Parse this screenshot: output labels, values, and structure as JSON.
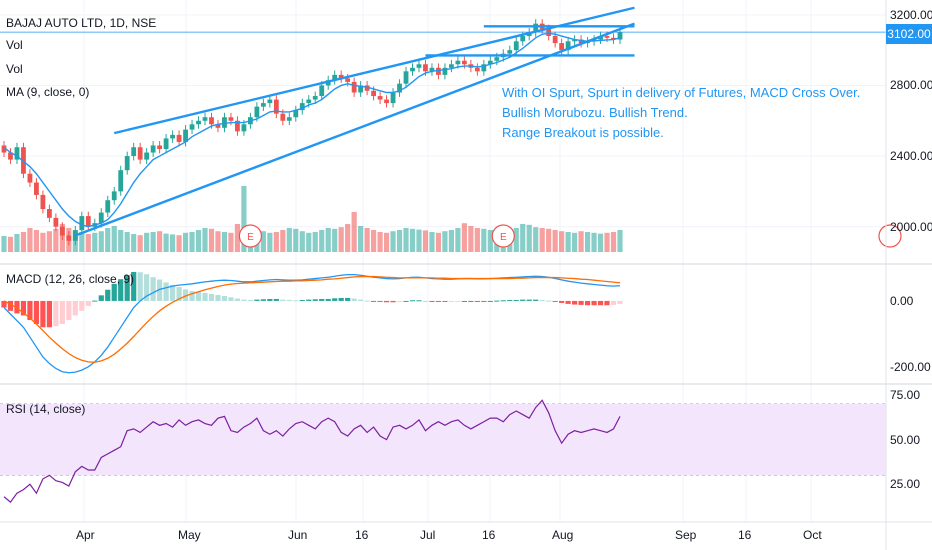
{
  "header": {
    "symbol": "BAJAJ AUTO LTD, 1D, NSE"
  },
  "legends": {
    "vol1": "Vol",
    "vol2": "Vol",
    "ma": "MA (9, close, 0)",
    "macd": "MACD (12, 26, close, 9)",
    "rsi": "RSI (14, close)"
  },
  "annotation": {
    "line1": "With OI Spurt, Spurt in delivery of Futures, MACD Cross Over.",
    "line2": "Bullish Morubozu. Bullish Trend.",
    "line3": "Range Breakout is possible."
  },
  "earnings_marker": "E",
  "last_price_label": "3102.00",
  "price_axis": [
    "3200.00",
    "2800.00",
    "2400.00",
    "2000.00"
  ],
  "macd_axis": [
    "0.00",
    "-200.00"
  ],
  "rsi_axis": [
    "75.00",
    "50.00",
    "25.00"
  ],
  "time_axis": [
    "Apr",
    "May",
    "Jun",
    "16",
    "Jul",
    "16",
    "Aug",
    "Sep",
    "16",
    "Oct"
  ],
  "colors": {
    "up": "#26a69a",
    "down": "#ef5350",
    "trend": "#2196f3",
    "macd": "#2196f3",
    "signal": "#ff6d00",
    "rsi": "#7b1fa2",
    "rsi_band": "#f3e5fb"
  },
  "chart_data": {
    "type": "candlestick",
    "price_range": [
      1800,
      3250
    ],
    "last_price": 3102,
    "closes": [
      2420,
      2380,
      2450,
      2300,
      2250,
      2180,
      2100,
      2050,
      2000,
      1950,
      1920,
      1980,
      2060,
      2000,
      2020,
      2080,
      2150,
      2200,
      2320,
      2400,
      2450,
      2380,
      2420,
      2460,
      2440,
      2500,
      2520,
      2480,
      2550,
      2580,
      2600,
      2620,
      2580,
      2560,
      2620,
      2600,
      2540,
      2580,
      2620,
      2680,
      2700,
      2720,
      2640,
      2600,
      2620,
      2660,
      2700,
      2720,
      2740,
      2800,
      2830,
      2860,
      2840,
      2820,
      2760,
      2800,
      2770,
      2740,
      2720,
      2700,
      2760,
      2810,
      2880,
      2900,
      2920,
      2880,
      2900,
      2860,
      2900,
      2920,
      2940,
      2920,
      2900,
      2880,
      2920,
      2940,
      2960,
      2980,
      3000,
      3050,
      3080,
      3100,
      3150,
      3120,
      3080,
      3040,
      3000,
      3050,
      3060,
      3040,
      3050,
      3060,
      3080,
      3070,
      3060,
      3102
    ],
    "ma9": [
      2450,
      2420,
      2400,
      2370,
      2340,
      2300,
      2250,
      2200,
      2150,
      2100,
      2060,
      2030,
      2010,
      2000,
      2010,
      2020,
      2040,
      2080,
      2130,
      2190,
      2250,
      2300,
      2340,
      2380,
      2400,
      2420,
      2440,
      2460,
      2480,
      2510,
      2530,
      2550,
      2570,
      2580,
      2585,
      2590,
      2590,
      2590,
      2600,
      2610,
      2630,
      2650,
      2655,
      2650,
      2650,
      2660,
      2670,
      2690,
      2700,
      2720,
      2750,
      2780,
      2800,
      2810,
      2800,
      2795,
      2790,
      2780,
      2770,
      2760,
      2760,
      2770,
      2790,
      2820,
      2850,
      2870,
      2880,
      2885,
      2890,
      2895,
      2905,
      2910,
      2910,
      2905,
      2910,
      2920,
      2930,
      2945,
      2960,
      2985,
      3010,
      3040,
      3070,
      3090,
      3095,
      3090,
      3080,
      3070,
      3060,
      3055,
      3050,
      3052,
      3055,
      3058,
      3060,
      3070
    ],
    "volume": [
      40,
      38,
      45,
      50,
      60,
      55,
      48,
      52,
      58,
      70,
      60,
      55,
      50,
      45,
      48,
      52,
      60,
      65,
      55,
      50,
      45,
      42,
      48,
      50,
      52,
      46,
      44,
      42,
      48,
      50,
      55,
      60,
      58,
      52,
      50,
      48,
      70,
      165,
      60,
      55,
      52,
      48,
      50,
      55,
      60,
      58,
      52,
      48,
      50,
      55,
      60,
      58,
      62,
      70,
      100,
      65,
      60,
      55,
      50,
      48,
      52,
      55,
      60,
      58,
      56,
      54,
      50,
      48,
      52,
      55,
      60,
      72,
      65,
      60,
      58,
      55,
      52,
      50,
      55,
      60,
      70,
      68,
      62,
      60,
      58,
      55,
      52,
      50,
      48,
      52,
      50,
      48,
      46,
      48,
      50,
      55
    ],
    "macd": [
      -20,
      -40,
      -60,
      -80,
      -110,
      -140,
      -170,
      -190,
      -205,
      -215,
      -218,
      -216,
      -210,
      -200,
      -185,
      -165,
      -140,
      -110,
      -80,
      -50,
      -20,
      0,
      15,
      25,
      35,
      40,
      45,
      48,
      50,
      52,
      55,
      58,
      60,
      62,
      63,
      62,
      60,
      58,
      58,
      60,
      62,
      64,
      65,
      64,
      63,
      63,
      64,
      66,
      68,
      70,
      72,
      75,
      78,
      80,
      80,
      78,
      75,
      72,
      70,
      68,
      67,
      68,
      70,
      72,
      72,
      70,
      68,
      67,
      66,
      66,
      67,
      68,
      68,
      67,
      67,
      68,
      69,
      70,
      71,
      72,
      73,
      74,
      75,
      74,
      72,
      68,
      64,
      60,
      57,
      54,
      52,
      50,
      48,
      46,
      45,
      46
    ],
    "signal": [
      0,
      -10,
      -22,
      -36,
      -52,
      -70,
      -90,
      -110,
      -128,
      -145,
      -160,
      -172,
      -180,
      -185,
      -186,
      -182,
      -174,
      -162,
      -146,
      -128,
      -108,
      -87,
      -66,
      -47,
      -30,
      -16,
      -4,
      6,
      15,
      22,
      28,
      34,
      39,
      44,
      48,
      51,
      53,
      54,
      55,
      56,
      57,
      58,
      59,
      60,
      60,
      61,
      61,
      62,
      63,
      64,
      66,
      67,
      69,
      71,
      73,
      74,
      74,
      74,
      73,
      72,
      71,
      70,
      70,
      70,
      70,
      70,
      70,
      69,
      69,
      68,
      68,
      68,
      68,
      68,
      68,
      68,
      68,
      68,
      68,
      69,
      69,
      70,
      71,
      71,
      71,
      71,
      70,
      69,
      68,
      66,
      65,
      63,
      61,
      59,
      57,
      55
    ],
    "rsi": [
      18,
      15,
      20,
      22,
      25,
      20,
      28,
      30,
      27,
      26,
      24,
      32,
      35,
      33,
      33,
      40,
      42,
      44,
      46,
      55,
      56,
      54,
      57,
      60,
      58,
      59,
      57,
      61,
      58,
      60,
      61,
      59,
      58,
      62,
      63,
      55,
      54,
      57,
      59,
      62,
      55,
      53,
      55,
      52,
      56,
      59,
      60,
      58,
      56,
      60,
      62,
      60,
      54,
      52,
      56,
      58,
      54,
      57,
      52,
      50,
      57,
      58,
      56,
      58,
      61,
      55,
      58,
      60,
      58,
      60,
      61,
      58,
      56,
      58,
      60,
      62,
      62,
      60,
      64,
      66,
      64,
      62,
      68,
      72,
      65,
      55,
      48,
      53,
      55,
      54,
      55,
      56,
      55,
      54,
      56,
      63
    ],
    "ylabel": "",
    "xlabel": ""
  }
}
